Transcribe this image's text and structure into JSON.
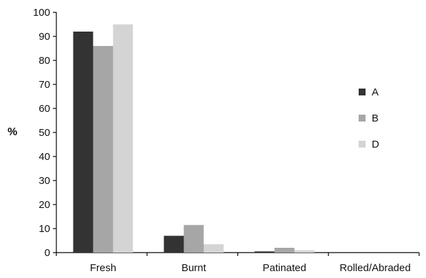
{
  "chart_data": {
    "type": "bar",
    "title": "",
    "xlabel": "",
    "ylabel": "%",
    "ylim": [
      0,
      100
    ],
    "yticks": [
      0,
      10,
      20,
      30,
      40,
      50,
      60,
      70,
      80,
      90,
      100
    ],
    "categories": [
      "Fresh",
      "Burnt",
      "Patinated",
      "Rolled/Abraded"
    ],
    "series": [
      {
        "name": "A",
        "color": "#333333",
        "values": [
          92,
          7,
          0.5,
          0
        ]
      },
      {
        "name": "B",
        "color": "#a6a6a6",
        "values": [
          86,
          11.5,
          2,
          0
        ]
      },
      {
        "name": "D",
        "color": "#d4d4d4",
        "values": [
          95,
          3.5,
          1,
          0
        ]
      }
    ],
    "grid": false,
    "legend": "right"
  }
}
